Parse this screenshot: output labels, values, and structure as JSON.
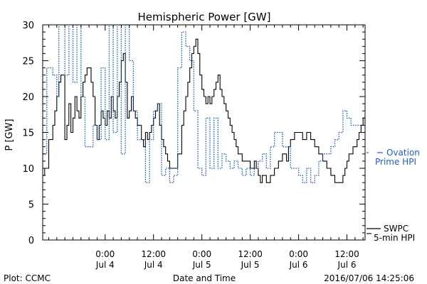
{
  "chart_data": {
    "type": "line",
    "title": "Hemispheric Power [GW]",
    "xlabel": "Date and Time",
    "ylabel": "P [GW]",
    "ylim": [
      0,
      30
    ],
    "xlim": [
      -15.5,
      64.5
    ],
    "yticks": [
      0,
      5,
      10,
      15,
      20,
      25,
      30
    ],
    "xtick_positions": [
      0,
      12,
      24,
      36,
      48,
      60
    ],
    "xtick_labels": [
      {
        "time": "0:00",
        "date": "Jul 4"
      },
      {
        "time": "12:00",
        "date": "Jul 4"
      },
      {
        "time": "0:00",
        "date": "Jul 5"
      },
      {
        "time": "12:00",
        "date": "Jul 5"
      },
      {
        "time": "0:00",
        "date": "Jul 6"
      },
      {
        "time": "12:00",
        "date": "Jul 6"
      }
    ],
    "grid": false,
    "legend": [
      {
        "lines": [
          "SWPC",
          "5-min HPI"
        ],
        "color": "#000000",
        "style": "solid",
        "placement": "right-bottom"
      },
      {
        "lines": [
          "Ovation",
          "Prime HPI"
        ],
        "color": "#1f5fbf",
        "style": "dotted",
        "placement": "right-middle"
      }
    ],
    "series": [
      {
        "name": "SWPC 5-min HPI",
        "color": "#000000",
        "style": "solid",
        "x": [
          -15.5,
          -15,
          -14,
          -13.5,
          -13,
          -12.5,
          -12,
          -11.5,
          -11,
          -10,
          -9.5,
          -9,
          -8.5,
          -8,
          -7.5,
          -7,
          -6.5,
          -6,
          -5.5,
          -5,
          -4.5,
          -4,
          -3.5,
          -3,
          -2.5,
          -2,
          -1.5,
          -1,
          -0.5,
          0,
          0.5,
          1,
          1.5,
          2,
          2.5,
          3,
          3.5,
          4,
          4.5,
          5,
          5.5,
          6,
          6.5,
          7,
          7.5,
          8,
          8.5,
          9,
          9.5,
          10,
          10.5,
          11,
          11.5,
          12,
          12.5,
          13,
          13.5,
          14,
          14.5,
          15,
          15.5,
          16,
          16.5,
          17,
          18,
          19,
          19.5,
          20,
          20.5,
          21,
          21.5,
          22,
          22.5,
          23,
          23.5,
          24,
          24.5,
          25,
          25.5,
          26,
          26.5,
          27,
          27.5,
          28,
          28.5,
          29,
          29.5,
          30,
          30.5,
          31,
          31.5,
          32,
          32.5,
          33,
          34,
          35,
          36,
          37,
          37.5,
          38,
          38.5,
          39,
          40,
          41,
          42,
          43,
          44,
          45,
          45.5,
          46,
          47,
          48,
          49,
          50,
          51,
          52,
          53,
          54,
          55,
          56,
          57,
          58,
          58.5,
          59,
          59.5,
          60,
          60.5,
          61,
          61.5,
          62,
          62.5,
          63,
          63.5,
          64,
          64.5
        ],
        "y": [
          9,
          10,
          14,
          14,
          16,
          18,
          20,
          22,
          23,
          14,
          16,
          19,
          15,
          17,
          20,
          18,
          17,
          20,
          22,
          23,
          24,
          24,
          22,
          20,
          16,
          14,
          16,
          18,
          17,
          16,
          18,
          17,
          20,
          18,
          17,
          20,
          22,
          25,
          26,
          22,
          17,
          18,
          20,
          18,
          17,
          16,
          16,
          14,
          13,
          15,
          14,
          15,
          16,
          17,
          18,
          19,
          16,
          14,
          13,
          12,
          11,
          10,
          10,
          10,
          12,
          16,
          18,
          20,
          22,
          24,
          26,
          27,
          28,
          26,
          23,
          21,
          20,
          19,
          20,
          19,
          20,
          21,
          22,
          23,
          21,
          20,
          19,
          18,
          17,
          16,
          15,
          14,
          13,
          12,
          11,
          11,
          10,
          11,
          10,
          9,
          8,
          9,
          8,
          9,
          10,
          11,
          12,
          11,
          13,
          14,
          15,
          15,
          14,
          15,
          14,
          13,
          12,
          11,
          10,
          9,
          8,
          8,
          8,
          9,
          10,
          11,
          12,
          12,
          13,
          13,
          14,
          15,
          16,
          17,
          16
        ]
      },
      {
        "name": "Ovation Prime HPI",
        "color": "#1f5fbf",
        "style": "dotted",
        "x": [
          -15.5,
          -14.5,
          -13,
          -12,
          -11.5,
          -10,
          -9,
          -8,
          -7,
          -6,
          -5,
          -4,
          -3,
          -2,
          -1,
          0,
          1,
          2,
          3,
          4,
          5,
          6,
          7,
          8,
          9,
          10,
          11,
          12,
          13,
          14,
          15,
          16,
          17,
          18,
          19,
          20,
          21,
          22,
          23,
          24,
          25,
          26,
          27,
          28,
          29,
          30,
          31,
          32,
          33,
          34,
          35,
          36,
          37,
          38,
          39,
          40,
          41,
          42,
          43,
          44,
          45,
          46,
          47,
          48,
          49,
          50,
          51,
          52,
          53,
          54,
          55,
          56,
          57,
          58,
          59,
          60,
          61,
          62,
          63,
          64,
          64.5
        ],
        "y": [
          12,
          24,
          23,
          20,
          31,
          23,
          31,
          22,
          31,
          20,
          13,
          13,
          16,
          14,
          24,
          14,
          30,
          15,
          30,
          12,
          30,
          25,
          18,
          14,
          14,
          8,
          14,
          18,
          19,
          9,
          10,
          8,
          9,
          24,
          29,
          27,
          25,
          18,
          10,
          9,
          17,
          10,
          17,
          10,
          12,
          11,
          10,
          11,
          10,
          9,
          10,
          9,
          10,
          11,
          12,
          10,
          13,
          15,
          15,
          13,
          13,
          10,
          10,
          9,
          8,
          10,
          8,
          9,
          11,
          12,
          12,
          13,
          14,
          15,
          18,
          17,
          16,
          16,
          16,
          16,
          16
        ]
      }
    ]
  },
  "footer": {
    "left": "Plot: CCMC",
    "right": "2016/07/06 14:25:06"
  }
}
